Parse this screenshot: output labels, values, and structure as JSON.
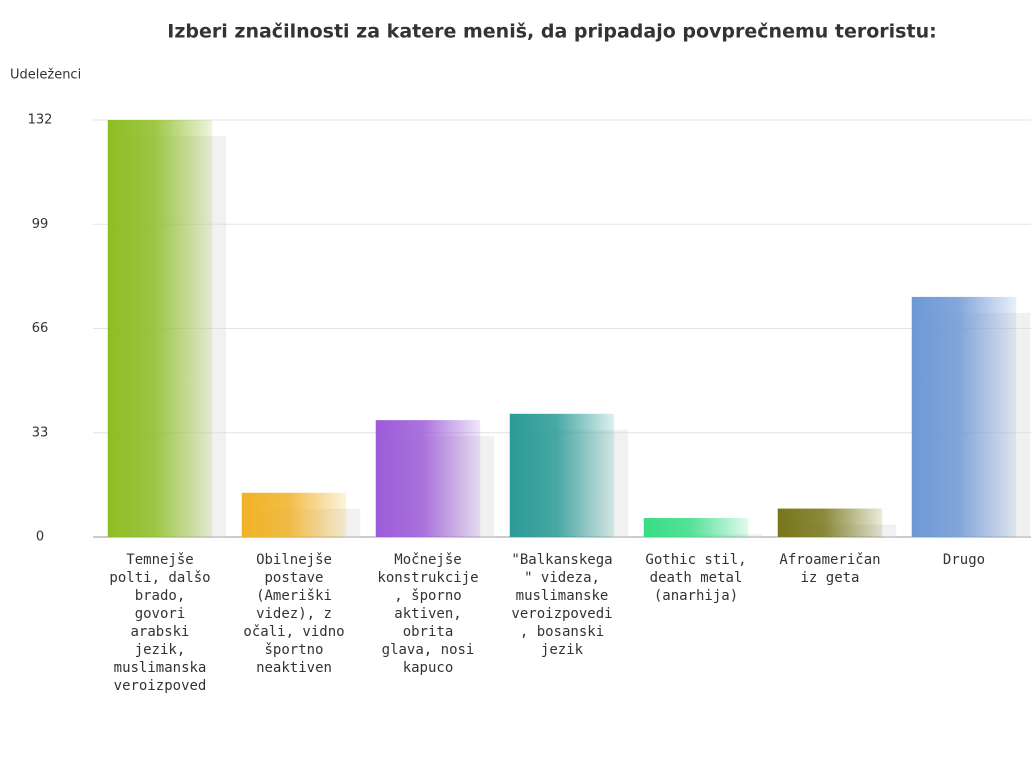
{
  "chart_data": {
    "type": "bar",
    "title": "Izberi značilnosti za katere meniš, da pripadajo povprečnemu teroristu:",
    "ylabel": "Udeleženci",
    "categories": [
      "Temnejše polti, dalšo brado, govori arabski jezik, muslimanska veroizpoved",
      "Obilnejše postave (Ameriški videz), z očali, vidno športno neaktiven",
      "Močnejše konstrukcije, šporno aktiven, obrita glava, nosi kapuco",
      "\"Balkanskega\" videza, muslimanske veroizpovedi, bosanski jezik",
      "Gothic stil, death metal (anarhija)",
      "Afroameričan iz geta",
      "Drugo"
    ],
    "values": [
      132,
      14,
      37,
      39,
      6,
      9,
      76
    ],
    "colors": [
      "#8dbd24",
      "#f0b226",
      "#9c5bd8",
      "#2a9a96",
      "#37dc86",
      "#77761a",
      "#6d98d6"
    ],
    "ylim": [
      0,
      132
    ],
    "yticks": [
      0,
      33,
      66,
      99,
      132
    ],
    "grid": true
  }
}
